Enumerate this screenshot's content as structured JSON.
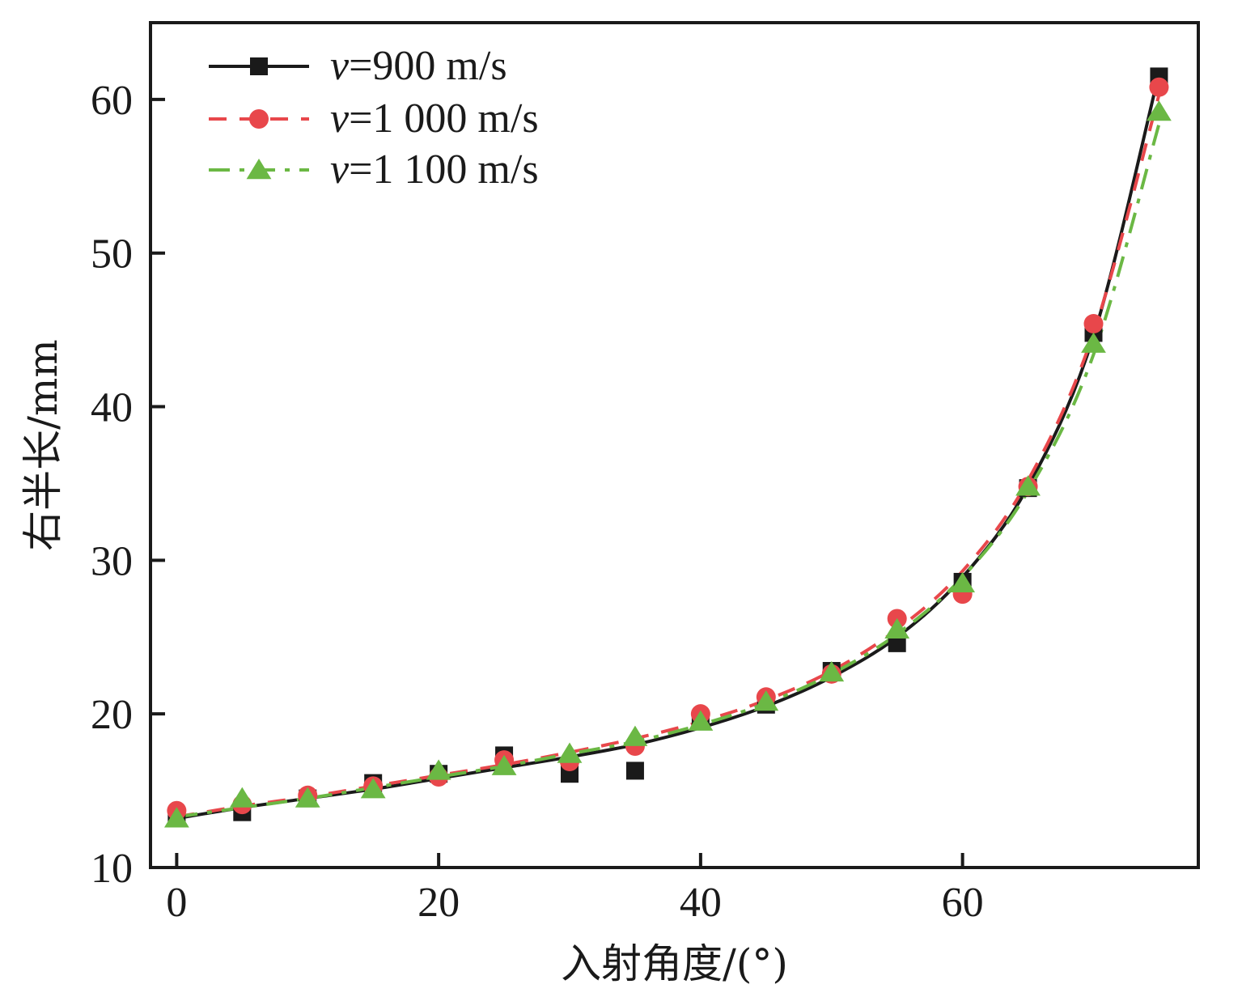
{
  "chart_data": {
    "type": "line",
    "xlabel": "入射角度/(°)",
    "ylabel": "右半长/mm",
    "xlim": [
      -2,
      78
    ],
    "ylim": [
      10,
      65
    ],
    "xticks": [
      0,
      20,
      40,
      60
    ],
    "yticks": [
      10,
      20,
      30,
      40,
      50,
      60
    ],
    "legend_position": "top-left",
    "grid": false,
    "series": [
      {
        "name": "v=900 m/s",
        "legend_var": "v",
        "legend_value": "=900 m/s",
        "color": "#1a1a1a",
        "marker": "square",
        "line_style": "solid",
        "points": {
          "x": [
            0,
            5,
            10,
            15,
            20,
            25,
            30,
            35,
            40,
            45,
            50,
            55,
            60,
            65,
            70,
            75
          ],
          "y": [
            13.3,
            13.6,
            14.5,
            15.5,
            16.1,
            17.3,
            16.1,
            16.3,
            19.6,
            20.6,
            22.8,
            24.6,
            28.6,
            34.7,
            44.8,
            61.5
          ]
        },
        "fit": {
          "x": [
            0,
            5,
            10,
            15,
            20,
            25,
            30,
            35,
            40,
            45,
            50,
            55,
            60,
            65,
            70,
            75
          ],
          "y": [
            13.2,
            13.9,
            14.5,
            15.1,
            15.8,
            16.5,
            17.2,
            18.0,
            19.1,
            20.5,
            22.4,
            25.0,
            28.9,
            34.8,
            44.6,
            61.7
          ]
        }
      },
      {
        "name": "v=1 000 m/s",
        "legend_var": "v",
        "legend_value": "=1 000 m/s",
        "color": "#e8474b",
        "marker": "circle",
        "line_style": "dashed",
        "points": {
          "x": [
            0,
            5,
            10,
            15,
            20,
            25,
            30,
            35,
            40,
            45,
            50,
            55,
            60,
            65,
            70,
            75
          ],
          "y": [
            13.7,
            14.1,
            14.7,
            15.3,
            15.9,
            17.0,
            16.9,
            17.9,
            20.0,
            21.1,
            22.6,
            26.2,
            27.8,
            34.8,
            45.4,
            60.8
          ]
        },
        "fit": {
          "x": [
            0,
            5,
            10,
            15,
            20,
            25,
            30,
            35,
            40,
            45,
            50,
            55,
            60,
            65,
            70,
            75
          ],
          "y": [
            13.3,
            14.0,
            14.6,
            15.3,
            16.0,
            16.7,
            17.5,
            18.4,
            19.5,
            20.9,
            22.8,
            25.5,
            29.3,
            35.2,
            44.8,
            60.3
          ]
        }
      },
      {
        "name": "v=1 100 m/s",
        "legend_var": "v",
        "legend_value": "=1 100 m/s",
        "color": "#6bb844",
        "marker": "triangle",
        "line_style": "dashdot",
        "points": {
          "x": [
            0,
            5,
            10,
            15,
            20,
            25,
            30,
            35,
            40,
            45,
            50,
            55,
            60,
            65,
            70,
            75
          ],
          "y": [
            13.2,
            14.5,
            14.5,
            15.1,
            16.3,
            16.6,
            17.4,
            18.5,
            19.5,
            20.8,
            22.7,
            25.5,
            28.5,
            34.8,
            44.1,
            59.2
          ]
        },
        "fit": {
          "x": [
            0,
            5,
            10,
            15,
            20,
            25,
            30,
            35,
            40,
            45,
            50,
            55,
            60,
            65,
            70,
            75
          ],
          "y": [
            13.3,
            13.9,
            14.5,
            15.2,
            15.9,
            16.6,
            17.4,
            18.2,
            19.3,
            20.7,
            22.6,
            25.2,
            28.9,
            34.5,
            43.4,
            58.4
          ]
        }
      }
    ]
  }
}
